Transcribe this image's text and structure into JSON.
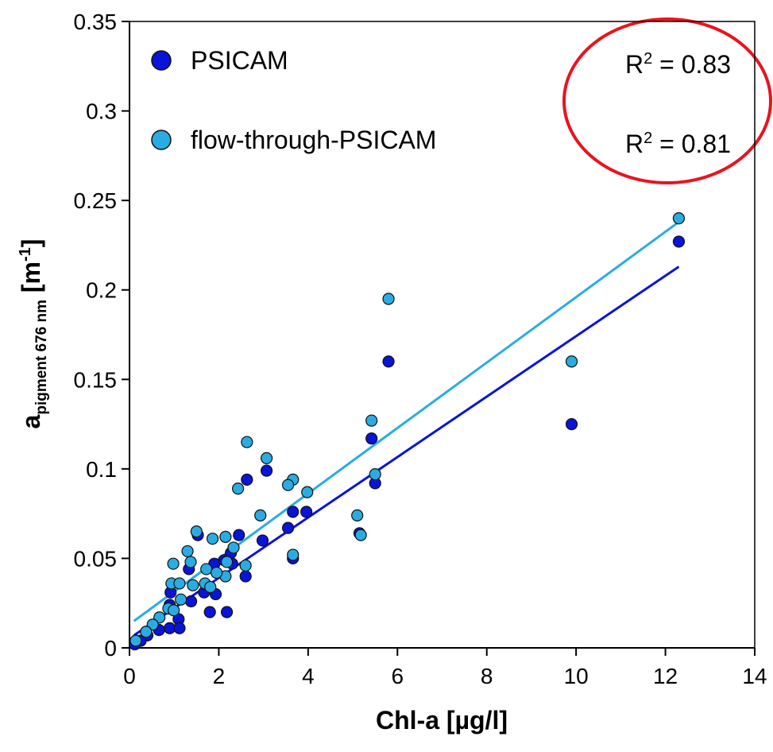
{
  "chart_data": {
    "type": "scatter",
    "x_label": "Chl-a [µg/l]",
    "y_label": {
      "main": "a",
      "sub": "pigment 676 nm",
      "unit_open": " [m",
      "unit_sup": "-1",
      "unit_close": "]"
    },
    "xlim": [
      0,
      14
    ],
    "xticks": [
      0,
      2,
      4,
      6,
      8,
      10,
      12,
      14
    ],
    "ylim": [
      0,
      0.35
    ],
    "yticks": [
      0,
      0.05,
      0.1,
      0.15,
      0.2,
      0.25,
      0.3,
      0.35
    ],
    "legend": "top-left",
    "annotations": [
      {
        "base": "R",
        "sup": "2",
        "text": " = 0.83"
      },
      {
        "base": "R",
        "sup": "2",
        "text": " = 0.81"
      }
    ],
    "series": [
      {
        "name": "PSICAM",
        "color": "#0a14d8",
        "x": [
          12.3,
          5.8,
          9.9,
          5.42,
          5.5,
          2.63,
          3.07,
          3.96,
          3.66,
          3.55,
          2.98,
          3.66,
          5.15,
          2.45,
          2.6,
          1.53,
          1.33,
          1.38,
          1.8,
          2.18,
          1.9,
          2.3,
          1.67,
          1.93,
          0.9,
          0.9,
          0.66,
          0.4,
          0.25,
          0.12,
          1.1,
          1.12,
          0.92,
          2.12,
          2.27
        ],
        "values": [
          0.227,
          0.16,
          0.125,
          0.117,
          0.092,
          0.094,
          0.099,
          0.076,
          0.076,
          0.067,
          0.06,
          0.05,
          0.064,
          0.063,
          0.04,
          0.063,
          0.044,
          0.026,
          0.02,
          0.02,
          0.047,
          0.047,
          0.031,
          0.03,
          0.024,
          0.011,
          0.01,
          0.007,
          0.004,
          0.002,
          0.016,
          0.011,
          0.031,
          0.049,
          0.053
        ],
        "fit_x": [
          0.1,
          12.3
        ],
        "fit_values": [
          0.007,
          0.213
        ]
      },
      {
        "name": "flow-through-PSICAM",
        "color": "#2aace2",
        "x": [
          12.3,
          5.8,
          9.9,
          5.42,
          5.5,
          2.63,
          3.07,
          3.66,
          3.55,
          3.98,
          2.43,
          2.93,
          5.1,
          5.18,
          3.66,
          1.5,
          1.3,
          1.86,
          2.15,
          2.33,
          1.37,
          1.72,
          2.15,
          1.95,
          2.6,
          2.18,
          0.98,
          0.94,
          1.12,
          1.42,
          1.69,
          1.81,
          0.87,
          0.99,
          1.15,
          0.67,
          0.52,
          0.37,
          0.14
        ],
        "values": [
          0.24,
          0.195,
          0.16,
          0.127,
          0.097,
          0.115,
          0.106,
          0.094,
          0.091,
          0.087,
          0.089,
          0.074,
          0.074,
          0.063,
          0.052,
          0.065,
          0.054,
          0.061,
          0.062,
          0.056,
          0.048,
          0.044,
          0.04,
          0.042,
          0.046,
          0.048,
          0.047,
          0.036,
          0.036,
          0.035,
          0.036,
          0.034,
          0.022,
          0.021,
          0.027,
          0.017,
          0.013,
          0.009,
          0.004
        ],
        "fit_x": [
          0.1,
          12.3
        ],
        "fit_values": [
          0.015,
          0.238
        ]
      }
    ]
  }
}
